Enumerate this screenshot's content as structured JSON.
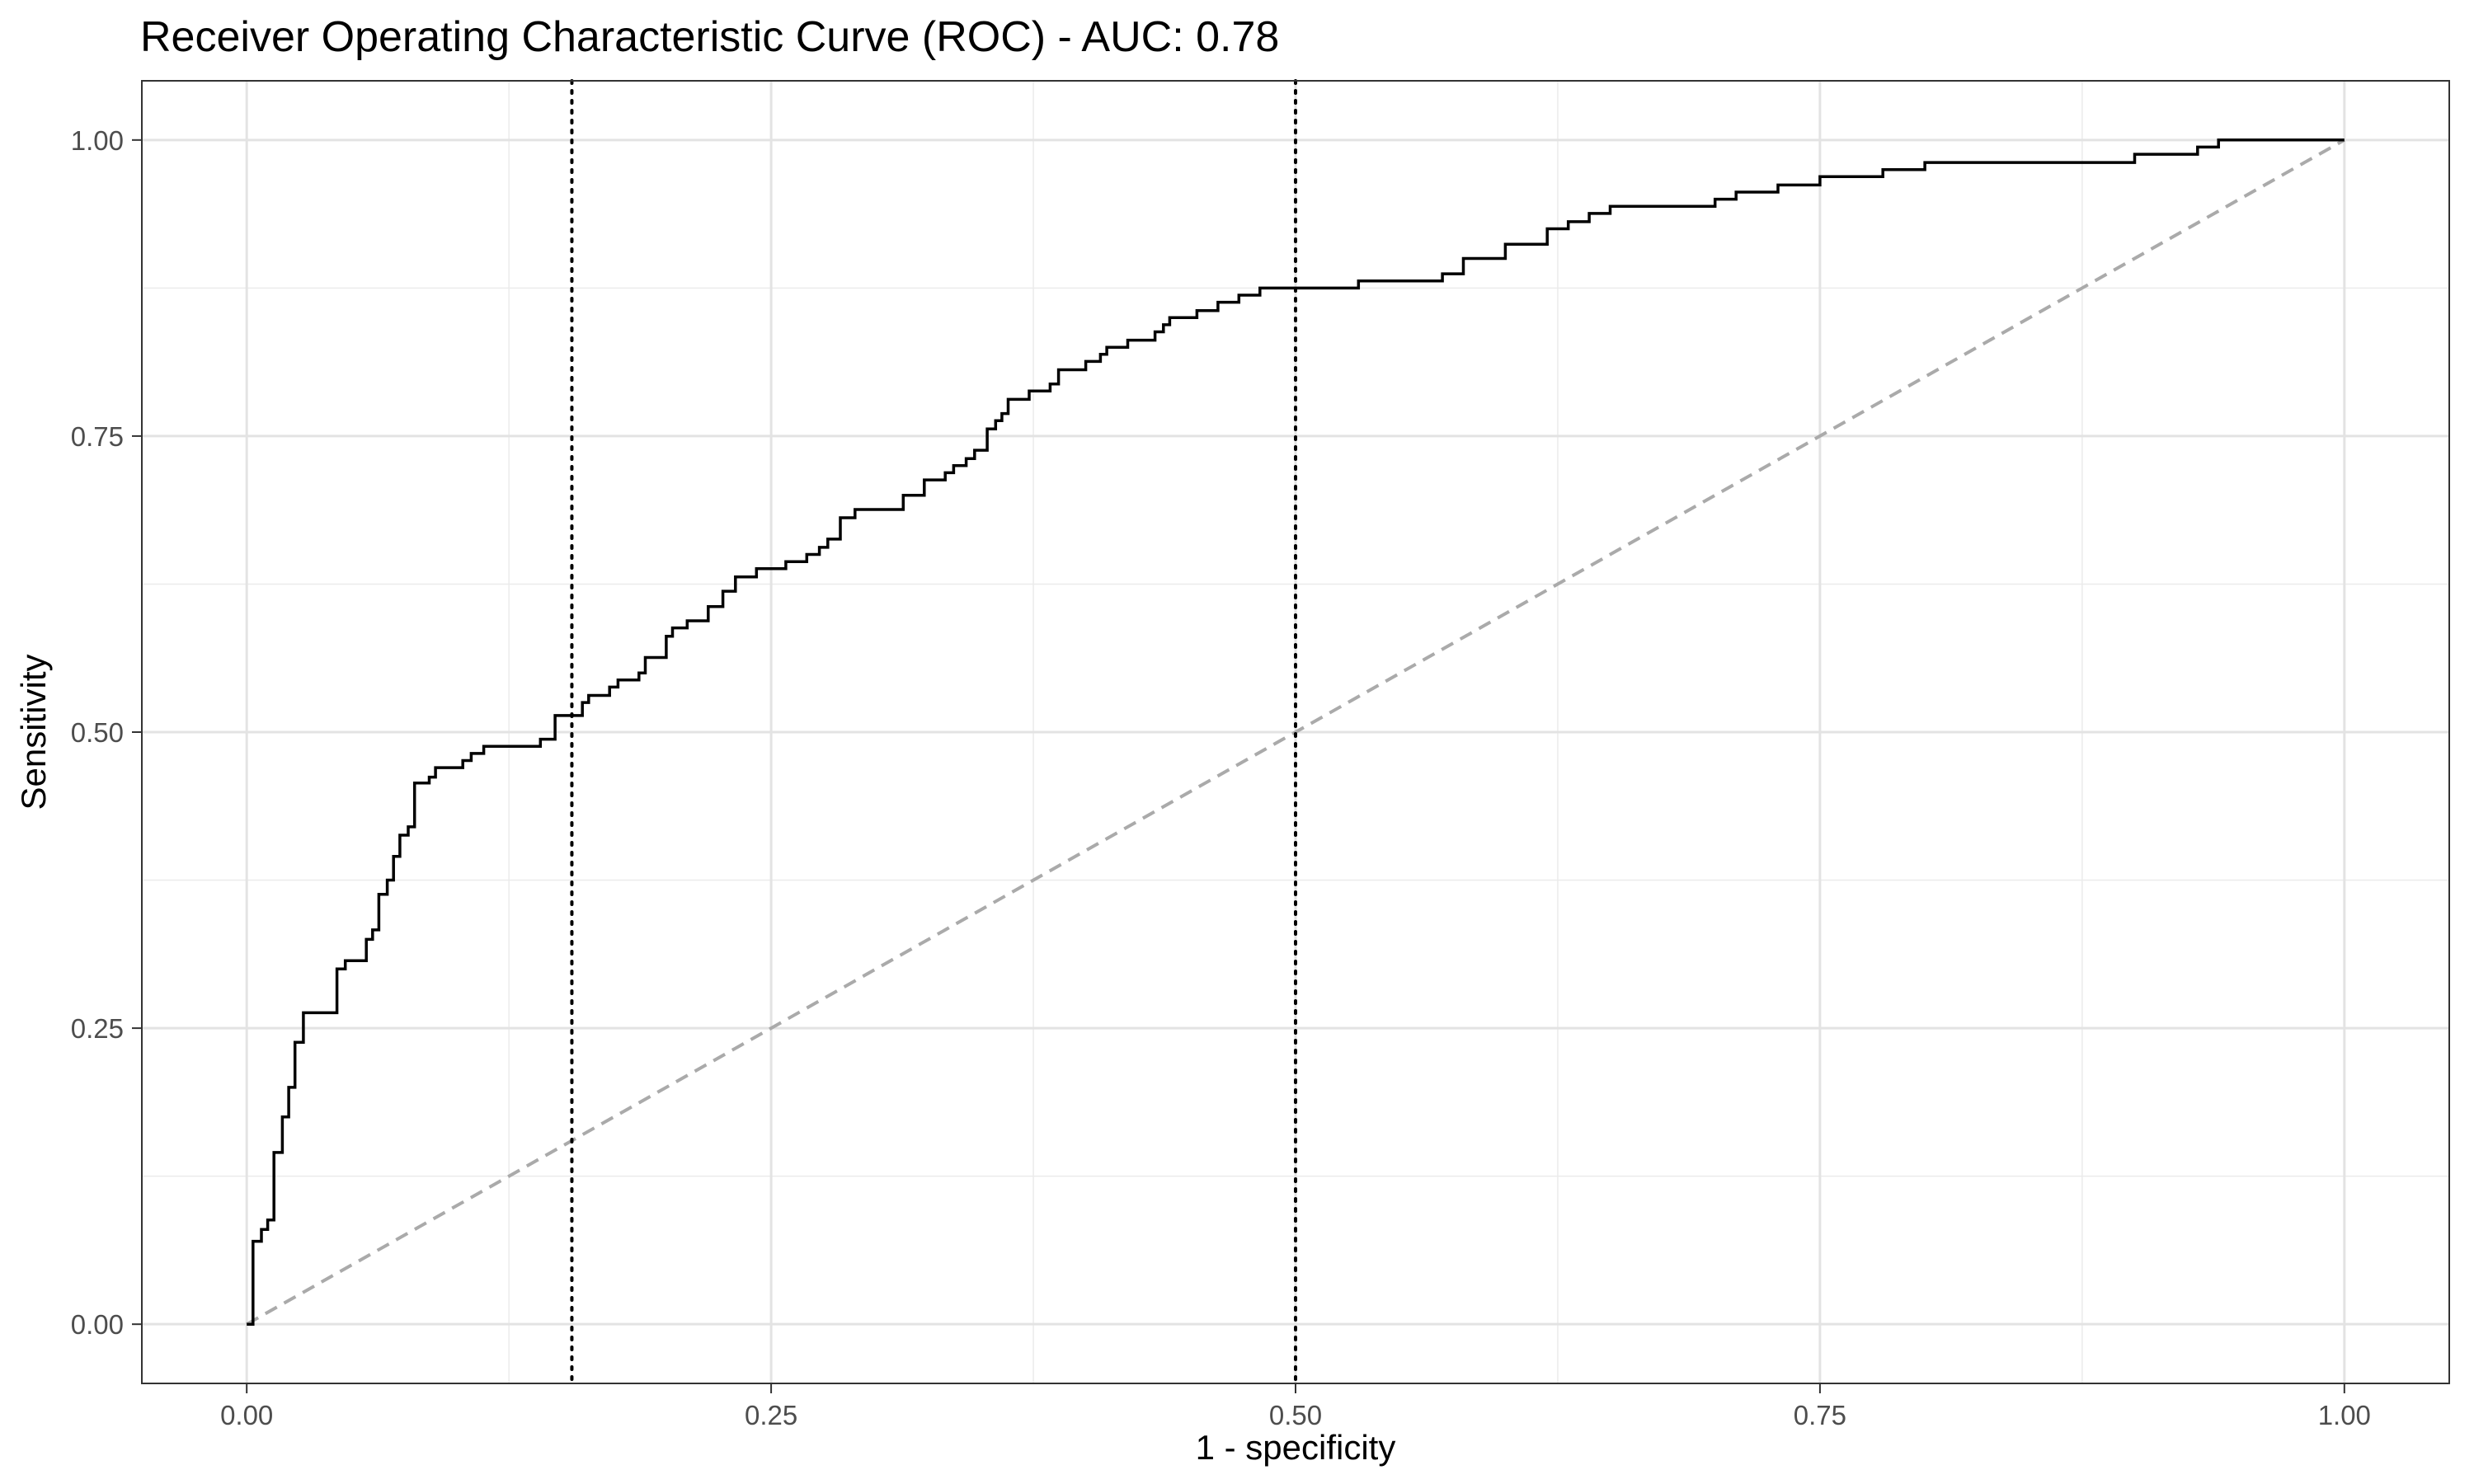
{
  "chart_data": {
    "type": "line",
    "title": "Receiver Operating Characteristic Curve (ROC) - AUC:  0.78",
    "xlabel": "1 - specificity",
    "ylabel": "Sensitivity",
    "xlim": [
      -0.05,
      1.05
    ],
    "ylim": [
      -0.05,
      1.05
    ],
    "x_ticks": [
      0,
      0.25,
      0.5,
      0.75,
      1
    ],
    "x_tick_labels": [
      "0.00",
      "0.25",
      "0.50",
      "0.75",
      "1.00"
    ],
    "y_ticks": [
      0,
      0.25,
      0.5,
      0.75,
      1
    ],
    "y_tick_labels": [
      "0.00",
      "0.25",
      "0.50",
      "0.75",
      "1.00"
    ],
    "grid": true,
    "legend": "none",
    "vlines": [
      0.155,
      0.5
    ],
    "reference_line": {
      "x": [
        0,
        1
      ],
      "y": [
        0,
        1
      ],
      "color": "#aaaaaa",
      "style": "dashed"
    },
    "series": [
      {
        "color": "#000000",
        "step": true,
        "x": [
          0,
          0.003,
          0.007,
          0.01,
          0.013,
          0.017,
          0.02,
          0.023,
          0.027,
          0.043,
          0.047,
          0.057,
          0.06,
          0.063,
          0.067,
          0.07,
          0.073,
          0.077,
          0.08,
          0.087,
          0.09,
          0.093,
          0.103,
          0.107,
          0.11,
          0.113,
          0.13,
          0.14,
          0.147,
          0.157,
          0.16,
          0.163,
          0.17,
          0.173,
          0.177,
          0.187,
          0.19,
          0.197,
          0.2,
          0.203,
          0.207,
          0.21,
          0.213,
          0.22,
          0.227,
          0.233,
          0.237,
          0.243,
          0.247,
          0.257,
          0.263,
          0.267,
          0.273,
          0.277,
          0.283,
          0.29,
          0.293,
          0.313,
          0.317,
          0.323,
          0.333,
          0.337,
          0.343,
          0.347,
          0.353,
          0.357,
          0.36,
          0.363,
          0.367,
          0.373,
          0.38,
          0.383,
          0.387,
          0.393,
          0.4,
          0.407,
          0.41,
          0.413,
          0.42,
          0.433,
          0.437,
          0.44,
          0.443,
          0.453,
          0.457,
          0.463,
          0.467,
          0.473,
          0.477,
          0.483,
          0.5,
          0.53,
          0.55,
          0.57,
          0.58,
          0.6,
          0.6,
          0.62,
          0.63,
          0.64,
          0.65,
          0.67,
          0.7,
          0.71,
          0.73,
          0.75,
          0.78,
          0.8,
          0.9,
          0.93,
          0.94,
          0.96,
          1.0
        ],
        "y": [
          0,
          0.07,
          0.08,
          0.088,
          0.145,
          0.175,
          0.2,
          0.238,
          0.263,
          0.3,
          0.307,
          0.325,
          0.333,
          0.363,
          0.375,
          0.395,
          0.413,
          0.42,
          0.457,
          0.462,
          0.47,
          0.47,
          0.476,
          0.482,
          0.482,
          0.488,
          0.488,
          0.494,
          0.514,
          0.514,
          0.525,
          0.531,
          0.531,
          0.538,
          0.544,
          0.55,
          0.563,
          0.563,
          0.581,
          0.588,
          0.588,
          0.594,
          0.594,
          0.606,
          0.619,
          0.631,
          0.631,
          0.638,
          0.638,
          0.644,
          0.644,
          0.65,
          0.656,
          0.663,
          0.681,
          0.688,
          0.688,
          0.7,
          0.7,
          0.713,
          0.719,
          0.725,
          0.731,
          0.738,
          0.756,
          0.763,
          0.769,
          0.781,
          0.781,
          0.788,
          0.788,
          0.794,
          0.806,
          0.806,
          0.813,
          0.819,
          0.825,
          0.825,
          0.831,
          0.838,
          0.844,
          0.85,
          0.85,
          0.856,
          0.856,
          0.863,
          0.863,
          0.869,
          0.869,
          0.875,
          0.875,
          0.881,
          0.881,
          0.887,
          0.9,
          0.9,
          0.912,
          0.925,
          0.931,
          0.938,
          0.944,
          0.944,
          0.95,
          0.956,
          0.962,
          0.969,
          0.975,
          0.981,
          0.988,
          0.994,
          1.0,
          1.0,
          1.0
        ]
      }
    ]
  }
}
